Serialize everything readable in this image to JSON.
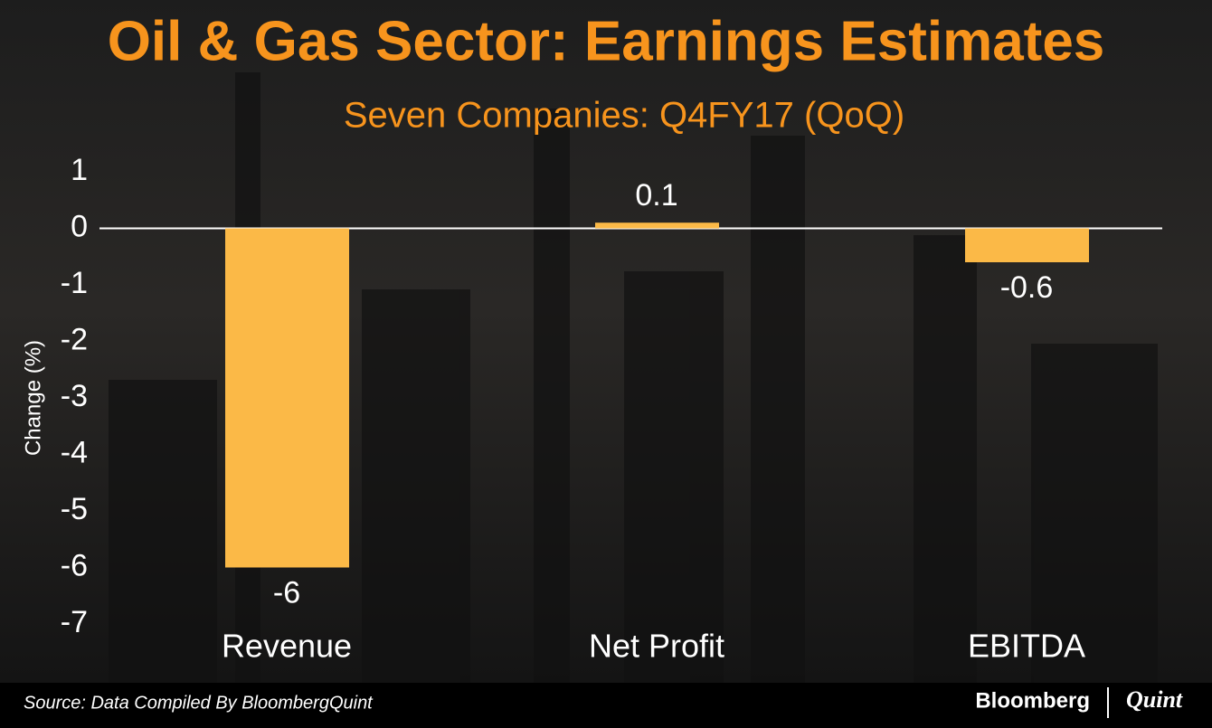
{
  "chart_data": {
    "type": "bar",
    "title": "Oil & Gas Sector: Earnings Estimates",
    "subtitle": "Seven Companies: Q4FY17 (QoQ)",
    "y_label": "Change (%)",
    "categories": [
      "Revenue",
      "Net Profit",
      "EBITDA"
    ],
    "values": [
      -6,
      0.1,
      -0.6
    ],
    "color": "#fbb947",
    "ylim": [
      -7,
      1
    ],
    "yticks": [
      1,
      0,
      -1,
      -2,
      -3,
      -4,
      -5,
      -6,
      -7
    ],
    "source": "Source: Data Compiled By BloombergQuint",
    "brand": [
      "Bloomberg",
      "Quint"
    ]
  }
}
